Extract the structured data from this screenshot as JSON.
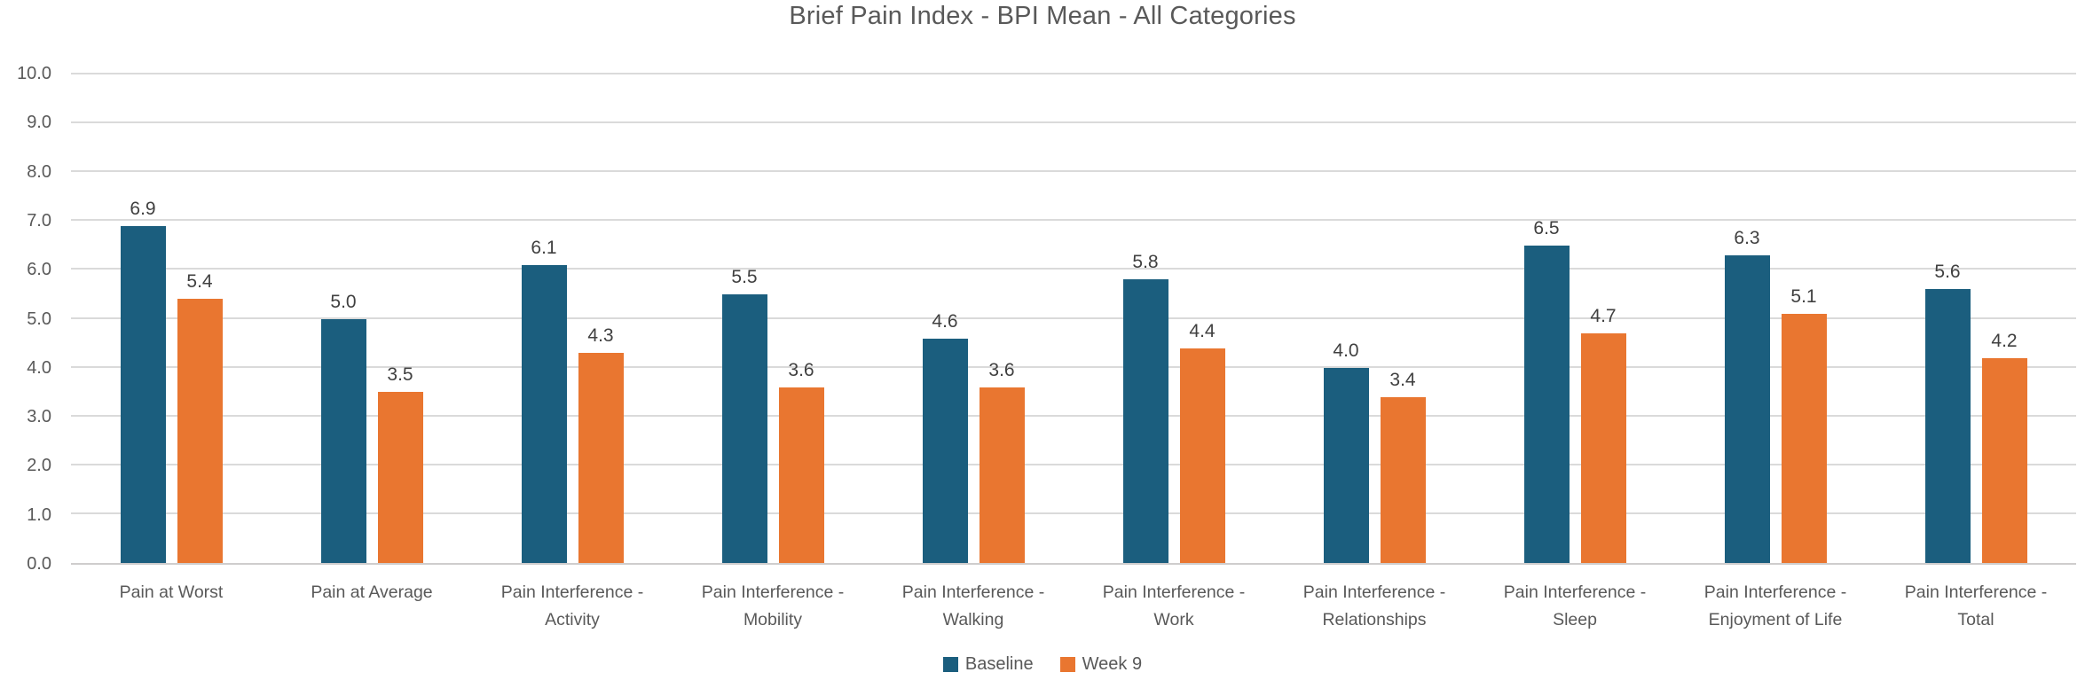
{
  "title": "Brief Pain Index - BPI Mean - All Categories",
  "colors": {
    "baseline": "#1b5e7e",
    "week9": "#e97630",
    "gridline": "#dadada",
    "axis_line": "#cfcdcd",
    "title_text": "#595959",
    "tick_text": "#595959",
    "data_label_text": "#404040",
    "background": "#ffffff"
  },
  "chart_data": {
    "type": "bar",
    "title": "Brief Pain Index - BPI Mean - All Categories",
    "categories": [
      "Pain at Worst",
      "Pain at Average",
      "Pain Interference - Activity",
      "Pain Interference - Mobility",
      "Pain Interference - Walking",
      "Pain Interference - Work",
      "Pain Interference - Relationships",
      "Pain Interference - Sleep",
      "Pain Interference - Enjoyment of Life",
      "Pain Interference - Total"
    ],
    "series": [
      {
        "name": "Baseline",
        "color": "#1b5e7e",
        "values": [
          6.9,
          5.0,
          6.1,
          5.5,
          4.6,
          5.8,
          4.0,
          6.5,
          6.3,
          5.6
        ]
      },
      {
        "name": "Week 9",
        "color": "#e97630",
        "values": [
          5.4,
          3.5,
          4.3,
          3.6,
          3.6,
          4.4,
          3.4,
          4.7,
          5.1,
          4.2
        ]
      }
    ],
    "xlabel": "",
    "ylabel": "",
    "ylim": [
      0,
      10
    ],
    "ytick_step": 1.0,
    "ytick_labels": [
      "0.0",
      "1.0",
      "2.0",
      "3.0",
      "4.0",
      "5.0",
      "6.0",
      "7.0",
      "8.0",
      "9.0",
      "10.0"
    ],
    "grid": true,
    "data_labels": true,
    "data_label_format": "one_decimal",
    "legend_position": "bottom-center"
  }
}
